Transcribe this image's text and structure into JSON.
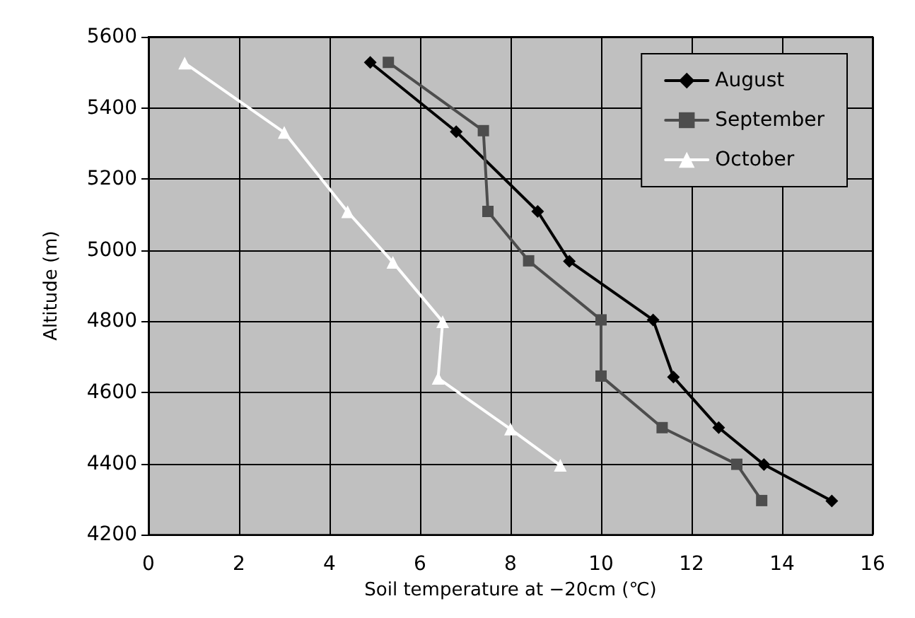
{
  "chart_data": {
    "type": "line",
    "xlabel": "Soil temperature at −20cm (℃)",
    "ylabel": "Altitude (m)",
    "xlim": [
      0,
      16
    ],
    "xticks": [
      0,
      2,
      4,
      6,
      8,
      10,
      12,
      14,
      16
    ],
    "ylim": [
      4200,
      5600
    ],
    "yticks": [
      4200,
      4400,
      4600,
      4800,
      5000,
      5200,
      5400,
      5600
    ],
    "grid": true,
    "legend": "top right",
    "series": [
      {
        "name": "August",
        "color": "#000000",
        "marker": "diamond",
        "x": [
          4.9,
          6.8,
          8.6,
          9.3,
          11.15,
          11.6,
          12.6,
          13.6,
          15.1
        ],
        "values": [
          5528,
          5333,
          5109,
          4969,
          4804,
          4643,
          4501,
          4397,
          4295
        ]
      },
      {
        "name": "September",
        "color": "#4d4d4d",
        "marker": "square",
        "x": [
          5.3,
          7.4,
          7.5,
          8.4,
          10.0,
          10.0,
          11.35,
          13.0,
          13.55
        ],
        "values": [
          5528,
          5336,
          5109,
          4970,
          4804,
          4646,
          4501,
          4398,
          4296
        ]
      },
      {
        "name": "October",
        "color": "#ffffff",
        "marker": "triangle",
        "x": [
          0.8,
          3.0,
          4.4,
          5.4,
          6.5,
          6.4,
          8.0,
          9.1
        ],
        "values": [
          5526,
          5331,
          5108,
          4966,
          4799,
          4640,
          4497,
          4395
        ]
      }
    ]
  }
}
